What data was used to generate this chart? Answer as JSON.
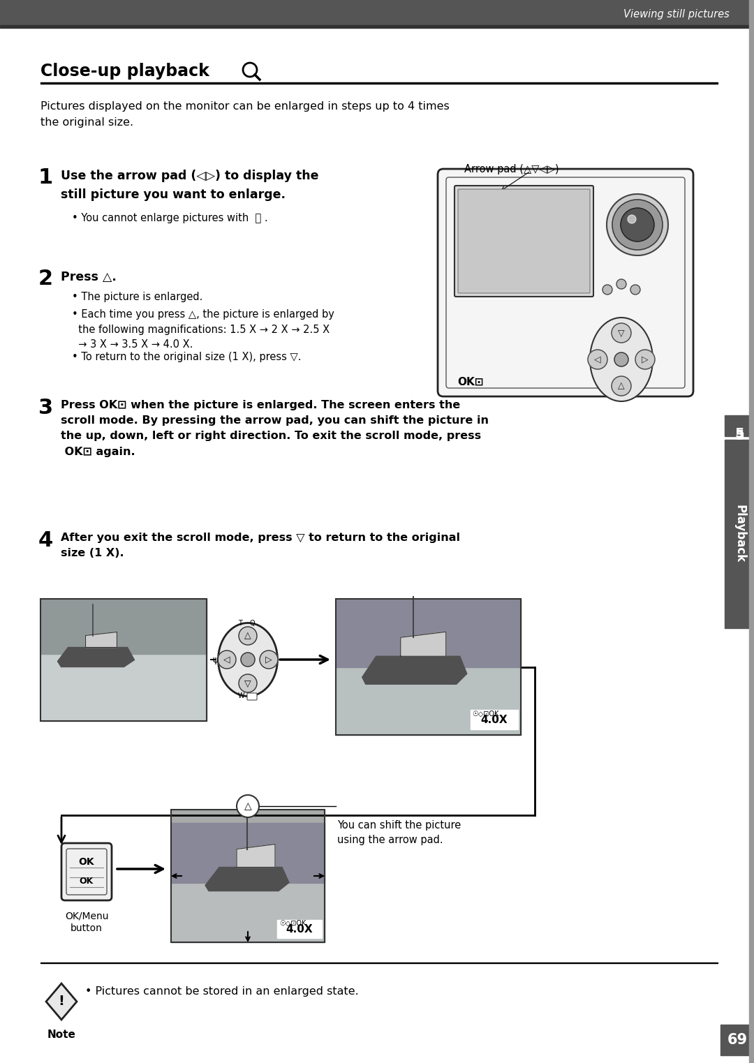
{
  "bg_color": "#ffffff",
  "header_bg": "#555555",
  "header_text": "Viewing still pictures",
  "section_title": "Close-up playback",
  "intro_text": "Pictures displayed on the monitor can be enlarged in steps up to 4 times\nthe original size.",
  "step1_bold": "Use the arrow pad (◁▷) to display the\nstill picture you want to enlarge.",
  "step1_bullet": "• You cannot enlarge pictures with  .",
  "step2_bold": "Press △.",
  "step2_bullets": [
    "• The picture is enlarged.",
    "• Each time you press △, the picture is enlarged by\n  the following magnifications: 1.5 X → 2 X → 2.5 X\n  → 3 X → 3.5 X → 4.0 X.",
    "• To return to the original size (1 X), press ▽."
  ],
  "step3_text": "Press OK⊡ when the picture is enlarged. The screen enters the\nscroll mode. By pressing the arrow pad, you can shift the picture in\nthe up, down, left or right direction. To exit the scroll mode, press\n OK⊡ again.",
  "step4_text": "After you exit the scroll mode, press ▽ to return to the original\nsize (1 X).",
  "note_text": "• Pictures cannot be stored in an enlarged state.",
  "page_num": "69",
  "side_label": "Playback",
  "arrow_pad_label": "Arrow pad (△▽◁▷)",
  "ok_label": "OK⊡",
  "ok_menu_label": "OK/Menu\nbutton",
  "shift_note": "You can shift the picture\nusing the arrow pad."
}
